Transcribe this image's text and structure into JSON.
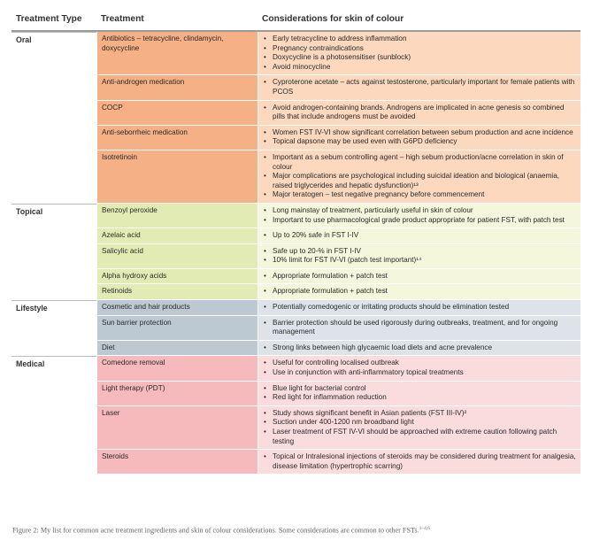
{
  "headers": [
    "Treatment Type",
    "Treatment",
    "Considerations for skin of colour"
  ],
  "groups": [
    {
      "name": "Oral",
      "style": "oral",
      "rows": [
        {
          "treatment": "Antibiotics – tetracycline, clindamycin, doxycycline",
          "considerations": [
            "Early tetracycline to address inflammation",
            "Pregnancy contraindications",
            "Doxycycline is a photosensitiser (sunblock)",
            "Avoid minocycline"
          ]
        },
        {
          "treatment": "Anti-androgen medication",
          "considerations": [
            "Cyproterone acetate – acts against testosterone, particularly important for female patients with PCOS"
          ]
        },
        {
          "treatment": "COCP",
          "considerations": [
            "Avoid androgen-containing brands. Androgens are implicated in acne genesis so combined pills that include androgens must be avoided"
          ]
        },
        {
          "treatment": "Anti-seborrheic medication",
          "considerations": [
            "Women FST IV-VI show significant correlation between sebum production and acne incidence",
            "Topical dapsone may be used even with G6PD deficiency"
          ]
        },
        {
          "treatment": "Isotretinoin",
          "considerations": [
            "Important as a sebum controlling agent – high sebum production/acne correlation in skin of colour",
            "Major complications are psychological including suicidal ideation and biological (anaemia, raised triglycerides and hepatic dysfunction)¹³",
            "Major teratogen – test negative pregnancy before commencement"
          ]
        }
      ]
    },
    {
      "name": "Topical",
      "style": "topical",
      "rows": [
        {
          "treatment": "Benzoyl peroxide",
          "considerations": [
            "Long mainstay of treatment, particularly useful in skin of colour",
            "Important to use pharmacological grade product appropriate for patient FST, with patch test"
          ]
        },
        {
          "treatment": "Azelaic acid",
          "considerations": [
            "Up to 20% safe in FST I-IV"
          ]
        },
        {
          "treatment": "Salicylic acid",
          "considerations": [
            "Safe up to 20-% in FST I-IV",
            "10% limit for FST IV-VI (patch test important)¹⁴"
          ]
        },
        {
          "treatment": "Alpha hydroxy acids",
          "considerations": [
            "Appropriate formulation + patch test"
          ]
        },
        {
          "treatment": "Retinoids",
          "considerations": [
            "Appropriate formulation + patch test"
          ]
        }
      ]
    },
    {
      "name": "Lifestyle",
      "style": "life",
      "rows": [
        {
          "treatment": "Cosmetic and hair products",
          "considerations": [
            "Potentially comedogenic or irritating products should be elimination tested"
          ]
        },
        {
          "treatment": "Sun barrier protection",
          "considerations": [
            "Barrier protection should be used rigorously during outbreaks, treatment, and for ongoing management"
          ]
        },
        {
          "treatment": "Diet",
          "considerations": [
            "Strong links between high glycaemic load diets and acne prevalence"
          ]
        }
      ]
    },
    {
      "name": "Medical",
      "style": "med",
      "rows": [
        {
          "treatment": "Comedone removal",
          "considerations": [
            "Useful for controlling localised outbreak",
            "Use in conjunction with anti-inflammatory topical treatments"
          ]
        },
        {
          "treatment": "Light therapy (PDT)",
          "considerations": [
            "Blue light for bacterial control",
            "Red light for inflammation reduction"
          ]
        },
        {
          "treatment": "Laser",
          "considerations": [
            "Study shows significant benefit in Asian patients (FST III-IV)²",
            "Suction under 400-1200 nm broadband light",
            "Laser treatment of FST IV-VI should be approached with extreme caution following patch testing"
          ]
        },
        {
          "treatment": "Steroids",
          "considerations": [
            "Topical or Intralesional injections of steroids may be considered during treatment for analgesia, disease limitation (hypertrophic scarring)"
          ]
        }
      ]
    }
  ],
  "caption": "Figure 2: My list for common acne treatment ingredients and skin of colour considerations. Some considerations are common to other FSTs.",
  "caption_refs": "1–4,6",
  "colors": {
    "oral_treatment": "#f6b086",
    "oral_consideration": "#fcd8bf",
    "topical_treatment": "#e2ebb4",
    "topical_consideration": "#f4f7dc",
    "lifestyle_treatment": "#bcc9d2",
    "lifestyle_consideration": "#dde3e8",
    "medical_treatment": "#f6b9bc",
    "medical_consideration": "#fbdcdd"
  }
}
